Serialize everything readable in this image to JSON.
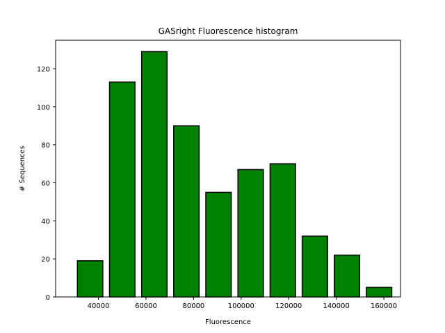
{
  "chart_data": {
    "type": "bar",
    "title": "GASright Fluorescence histogram",
    "xlabel": "Fluorescence",
    "ylabel": "# Sequences",
    "x": [
      36500,
      50000,
      63500,
      77000,
      90500,
      104000,
      117500,
      131000,
      144500,
      158000
    ],
    "values": [
      19,
      113,
      129,
      90,
      55,
      67,
      70,
      32,
      22,
      5
    ],
    "bar_width": 10700,
    "xlim": [
      22000,
      167000
    ],
    "ylim": [
      0,
      135
    ],
    "xticks": [
      40000,
      60000,
      80000,
      100000,
      120000,
      140000,
      160000
    ],
    "yticks": [
      0,
      20,
      40,
      60,
      80,
      100,
      120
    ],
    "bar_color": "#008000",
    "edge_color": "#000000",
    "grid": false
  }
}
